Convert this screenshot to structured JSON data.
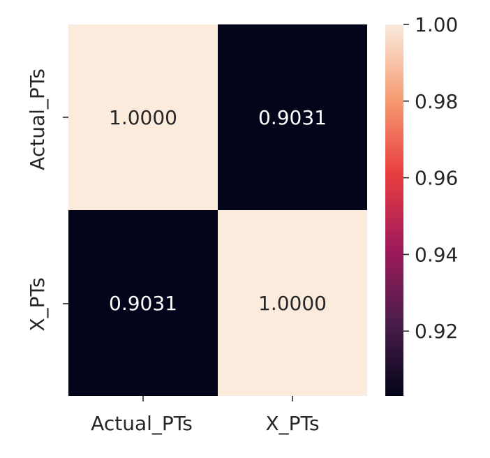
{
  "chart_data": {
    "type": "heatmap",
    "title": "",
    "xlabel": "",
    "ylabel": "",
    "x_categories": [
      "Actual_PTs",
      "X_PTs"
    ],
    "y_categories": [
      "Actual_PTs",
      "X_PTs"
    ],
    "values": [
      [
        1.0,
        0.9031
      ],
      [
        0.9031,
        1.0
      ]
    ],
    "cell_labels": [
      [
        "1.0000",
        "0.9031"
      ],
      [
        "0.9031",
        "1.0000"
      ]
    ],
    "colormap": "rocket",
    "colorbar": {
      "range": [
        0.9031,
        1.0
      ],
      "ticks": [
        0.92,
        0.94,
        0.96,
        0.98,
        1.0
      ],
      "tick_labels": [
        "0.92",
        "0.94",
        "0.96",
        "0.98",
        "1.00"
      ],
      "colors": [
        "#03051a",
        "#4c1d4b",
        "#a11a5b",
        "#e83f3f",
        "#f69c73",
        "#faebdd"
      ]
    },
    "legend": "none",
    "grid": false
  }
}
